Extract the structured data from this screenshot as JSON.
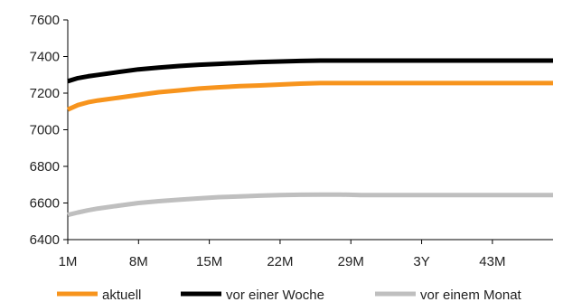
{
  "chart_data": {
    "type": "line",
    "title": "",
    "xlabel": "",
    "ylabel": "",
    "ylim": [
      6400,
      7600
    ],
    "yticks": [
      6400,
      6600,
      6800,
      7000,
      7200,
      7400,
      7600
    ],
    "x_tick_labels": [
      "1M",
      "8M",
      "15M",
      "22M",
      "29M",
      "3Y",
      "43M"
    ],
    "x_tick_months": [
      1,
      8,
      15,
      22,
      29,
      36,
      43
    ],
    "x_range_months": [
      1,
      49
    ],
    "grid": false,
    "legend_position": "bottom",
    "series": [
      {
        "name": "aktuell",
        "color": "#f7941d",
        "x": [
          1,
          2,
          3,
          4,
          6,
          8,
          10,
          12,
          14,
          16,
          18,
          20,
          22,
          24,
          26,
          30,
          36,
          42,
          49
        ],
        "y": [
          7110,
          7135,
          7150,
          7160,
          7175,
          7190,
          7205,
          7215,
          7225,
          7232,
          7238,
          7242,
          7247,
          7252,
          7255,
          7255,
          7255,
          7255,
          7255
        ]
      },
      {
        "name": "vor einer Woche",
        "color": "#000000",
        "x": [
          1,
          2,
          3,
          4,
          6,
          8,
          10,
          12,
          14,
          16,
          18,
          20,
          22,
          24,
          26,
          30,
          36,
          42,
          49
        ],
        "y": [
          7265,
          7282,
          7292,
          7300,
          7315,
          7330,
          7340,
          7348,
          7355,
          7360,
          7365,
          7370,
          7373,
          7376,
          7378,
          7378,
          7378,
          7378,
          7378
        ]
      },
      {
        "name": "vor einem Monat",
        "color": "#bfbfbf",
        "x": [
          1,
          2,
          3,
          4,
          6,
          8,
          10,
          12,
          14,
          16,
          18,
          20,
          22,
          24,
          26,
          28,
          30,
          36,
          42,
          49
        ],
        "y": [
          6535,
          6548,
          6560,
          6570,
          6585,
          6600,
          6610,
          6618,
          6625,
          6632,
          6636,
          6640,
          6643,
          6645,
          6646,
          6646,
          6643,
          6643,
          6643,
          6643
        ]
      }
    ]
  }
}
